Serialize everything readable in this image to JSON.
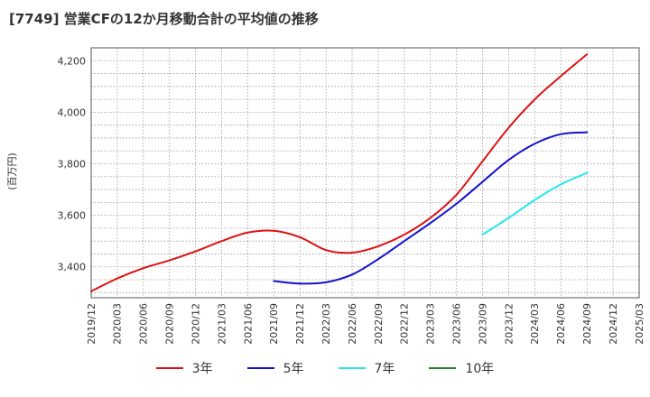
{
  "chart_data": {
    "type": "line",
    "title": "[7749]  営業CFの12か月移動合計の平均値の推移",
    "ylabel": "(百万円)",
    "ylim": [
      3280,
      4250
    ],
    "yticks": [
      3400,
      3600,
      3800,
      4000,
      4200
    ],
    "ytick_labels": [
      "3,400",
      "3,600",
      "3,800",
      "4,000",
      "4,200"
    ],
    "xticks": [
      "2019/12",
      "2020/03",
      "2020/06",
      "2020/09",
      "2020/12",
      "2021/03",
      "2021/06",
      "2021/09",
      "2021/12",
      "2022/03",
      "2022/06",
      "2022/09",
      "2022/12",
      "2023/03",
      "2023/06",
      "2023/09",
      "2023/12",
      "2024/03",
      "2024/06",
      "2024/09",
      "2024/12",
      "2025/03"
    ],
    "grid": true,
    "legend_position": "bottom",
    "series": [
      {
        "name": "3年",
        "color": "#dd1111",
        "start_index": 0,
        "values": [
          3305,
          3355,
          3395,
          3425,
          3460,
          3500,
          3533,
          3540,
          3515,
          3465,
          3455,
          3480,
          3525,
          3590,
          3680,
          3810,
          3940,
          4050,
          4140,
          4225
        ]
      },
      {
        "name": "5年",
        "color": "#1111cc",
        "start_index": 7,
        "values": [
          3345,
          3335,
          3340,
          3370,
          3430,
          3500,
          3570,
          3645,
          3730,
          3815,
          3878,
          3915,
          3922
        ]
      },
      {
        "name": "7年",
        "color": "#22e6ee",
        "start_index": 15,
        "values": [
          3525,
          3590,
          3660,
          3720,
          3765
        ]
      },
      {
        "name": "10年",
        "color": "#228822",
        "start_index": 19,
        "values": []
      }
    ]
  }
}
